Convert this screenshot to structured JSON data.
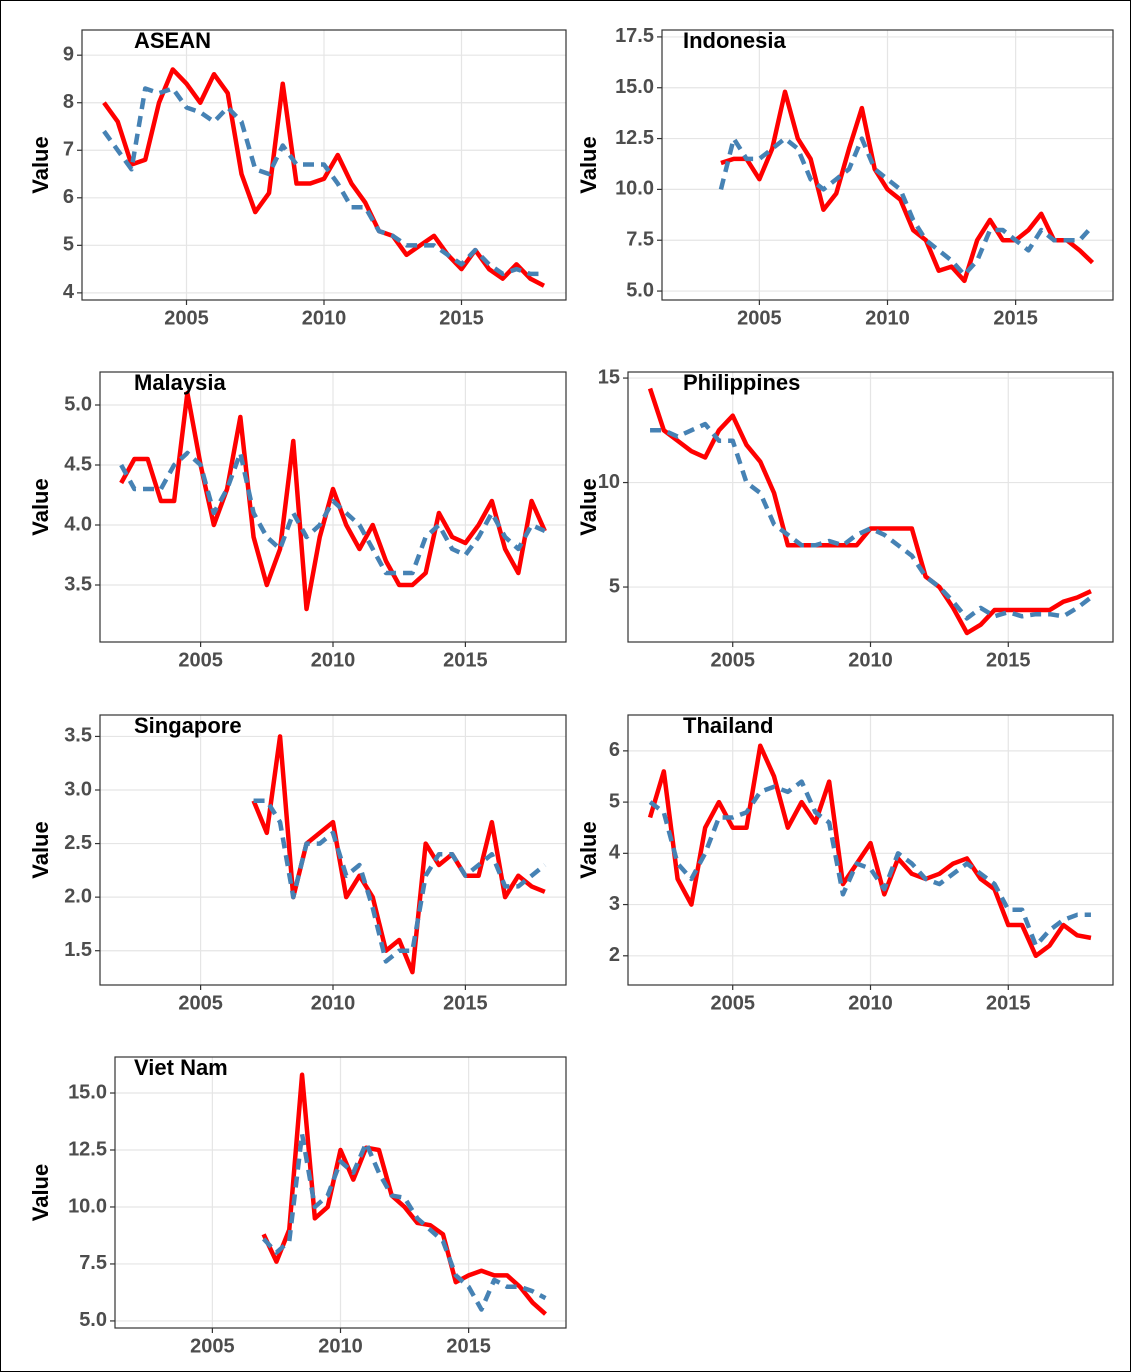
{
  "chart_data": [
    {
      "type": "line",
      "title": "ASEAN",
      "y_label": "Value",
      "x": [
        2002,
        2002.5,
        2003,
        2003.5,
        2004,
        2004.5,
        2005,
        2005.5,
        2006,
        2006.5,
        2007,
        2007.5,
        2008,
        2008.5,
        2009,
        2009.5,
        2010,
        2010.5,
        2011,
        2011.5,
        2012,
        2012.5,
        2013,
        2013.5,
        2014,
        2014.5,
        2015,
        2015.5,
        2016,
        2016.5,
        2017,
        2017.5,
        2018
      ],
      "series": [
        {
          "color": "#ff0000",
          "linetype": "solid",
          "values": [
            8.0,
            7.6,
            6.7,
            6.8,
            8.0,
            8.7,
            8.4,
            8.0,
            8.6,
            8.2,
            6.5,
            5.7,
            6.1,
            8.4,
            6.3,
            6.3,
            6.4,
            6.9,
            6.3,
            5.9,
            5.3,
            5.2,
            4.8,
            5.0,
            5.2,
            4.8,
            4.5,
            4.9,
            4.5,
            4.3,
            4.6,
            4.3,
            4.15
          ]
        },
        {
          "color": "#4682b4",
          "linetype": "dashed",
          "values": [
            7.4,
            7.0,
            6.6,
            8.3,
            8.2,
            8.3,
            7.9,
            7.8,
            7.6,
            7.9,
            7.6,
            6.6,
            6.5,
            7.1,
            6.7,
            6.7,
            6.7,
            6.3,
            5.8,
            5.8,
            5.3,
            5.2,
            5.0,
            5.0,
            5.0,
            4.8,
            4.6,
            4.9,
            4.6,
            4.4,
            4.5,
            4.4,
            4.4
          ]
        }
      ],
      "xlim": [
        2001.2,
        2018.8
      ],
      "xticks": [
        2005,
        2010,
        2015
      ],
      "ylim": [
        3.85,
        9.53
      ],
      "yticks": [
        4,
        5,
        6,
        7,
        8,
        9
      ],
      "grid": true
    },
    {
      "type": "line",
      "title": "Indonesia",
      "y_label": "Value",
      "x": [
        2002,
        2002.5,
        2003,
        2003.5,
        2004,
        2004.5,
        2005,
        2005.5,
        2006,
        2006.5,
        2007,
        2007.5,
        2008,
        2008.5,
        2009,
        2009.5,
        2010,
        2010.5,
        2011,
        2011.5,
        2012,
        2012.5,
        2013,
        2013.5,
        2014,
        2014.5,
        2015,
        2015.5,
        2016,
        2016.5,
        2017,
        2017.5,
        2018
      ],
      "series": [
        {
          "color": "#ff0000",
          "linetype": "solid",
          "values": [
            null,
            null,
            null,
            11.3,
            11.5,
            11.5,
            10.5,
            12.0,
            14.8,
            12.5,
            11.5,
            9.0,
            9.8,
            12.0,
            14.0,
            11.0,
            10.0,
            9.5,
            8.0,
            7.5,
            6.0,
            6.2,
            5.5,
            7.5,
            8.5,
            7.5,
            7.5,
            8.0,
            8.8,
            7.5,
            7.5,
            7.0,
            6.4
          ]
        },
        {
          "color": "#4682b4",
          "linetype": "dashed",
          "values": [
            null,
            null,
            null,
            10.0,
            12.5,
            11.5,
            11.5,
            12.0,
            12.5,
            12.0,
            10.5,
            10.0,
            10.5,
            11.0,
            12.5,
            11.0,
            10.5,
            10.0,
            8.5,
            7.5,
            7.0,
            6.5,
            5.8,
            6.5,
            8.0,
            8.0,
            7.5,
            7.0,
            8.0,
            7.5,
            7.5,
            7.5,
            8.2
          ]
        }
      ],
      "xlim": [
        2001.2,
        2018.8
      ],
      "xticks": [
        2005,
        2010,
        2015
      ],
      "ylim": [
        4.56,
        17.84
      ],
      "yticks": [
        {
          "value": 5,
          "label": "5.0"
        },
        7.5,
        {
          "value": 10,
          "label": "10.0"
        },
        12.5,
        {
          "value": 15,
          "label": "15.0"
        },
        17.5
      ],
      "grid": true
    },
    {
      "type": "line",
      "title": "Malaysia",
      "y_label": "Value",
      "x": [
        2002,
        2002.5,
        2003,
        2003.5,
        2004,
        2004.5,
        2005,
        2005.5,
        2006,
        2006.5,
        2007,
        2007.5,
        2008,
        2008.5,
        2009,
        2009.5,
        2010,
        2010.5,
        2011,
        2011.5,
        2012,
        2012.5,
        2013,
        2013.5,
        2014,
        2014.5,
        2015,
        2015.5,
        2016,
        2016.5,
        2017,
        2017.5,
        2018
      ],
      "series": [
        {
          "color": "#ff0000",
          "linetype": "solid",
          "values": [
            4.35,
            4.55,
            4.55,
            4.2,
            4.2,
            5.1,
            4.5,
            4.0,
            4.3,
            4.9,
            3.9,
            3.5,
            3.8,
            4.7,
            3.3,
            3.9,
            4.3,
            4.0,
            3.8,
            4.0,
            3.7,
            3.5,
            3.5,
            3.6,
            4.1,
            3.9,
            3.85,
            4.0,
            4.2,
            3.8,
            3.6,
            4.2,
            3.95
          ]
        },
        {
          "color": "#4682b4",
          "linetype": "dashed",
          "values": [
            4.5,
            4.3,
            4.3,
            4.3,
            4.5,
            4.6,
            4.5,
            4.1,
            4.3,
            4.6,
            4.1,
            3.9,
            3.8,
            4.1,
            3.9,
            4.0,
            4.2,
            4.1,
            4.0,
            3.8,
            3.6,
            3.6,
            3.6,
            3.9,
            4.0,
            3.8,
            3.75,
            3.9,
            4.1,
            3.9,
            3.8,
            4.0,
            3.95
          ]
        }
      ],
      "xlim": [
        2001.2,
        2018.8
      ],
      "xticks": [
        2005,
        2010,
        2015
      ],
      "ylim": [
        3.025,
        5.275
      ],
      "yticks": [
        3.5,
        {
          "value": 4,
          "label": "4.0"
        },
        4.5,
        {
          "value": 5,
          "label": "5.0"
        }
      ],
      "grid": true
    },
    {
      "type": "line",
      "title": "Philippines",
      "y_label": "Value",
      "x": [
        2002,
        2002.5,
        2003,
        2003.5,
        2004,
        2004.5,
        2005,
        2005.5,
        2006,
        2006.5,
        2007,
        2007.5,
        2008,
        2008.5,
        2009,
        2009.5,
        2010,
        2010.5,
        2011,
        2011.5,
        2012,
        2012.5,
        2013,
        2013.5,
        2014,
        2014.5,
        2015,
        2015.5,
        2016,
        2016.5,
        2017,
        2017.5,
        2018
      ],
      "series": [
        {
          "color": "#ff0000",
          "linetype": "solid",
          "values": [
            14.5,
            12.5,
            12.0,
            11.5,
            11.2,
            12.5,
            13.2,
            11.8,
            11.0,
            9.5,
            7.0,
            7.0,
            7.0,
            7.0,
            7.0,
            7.0,
            7.8,
            7.8,
            7.8,
            7.8,
            5.5,
            5.0,
            4.0,
            2.8,
            3.2,
            3.9,
            3.9,
            3.9,
            3.9,
            3.9,
            4.3,
            4.5,
            4.8
          ]
        },
        {
          "color": "#4682b4",
          "linetype": "dashed",
          "values": [
            12.5,
            12.5,
            12.2,
            12.5,
            12.8,
            12.0,
            12.0,
            10.0,
            9.5,
            8.0,
            7.5,
            7.0,
            7.0,
            7.2,
            7.0,
            7.5,
            7.8,
            7.5,
            7.0,
            6.5,
            5.5,
            5.0,
            4.3,
            3.5,
            4.0,
            3.6,
            3.8,
            3.6,
            3.7,
            3.7,
            3.6,
            4.0,
            4.5
          ]
        }
      ],
      "xlim": [
        2001.2,
        2018.8
      ],
      "xticks": [
        2005,
        2010,
        2015
      ],
      "ylim": [
        2.37,
        15.29
      ],
      "yticks": [
        5,
        10,
        15
      ],
      "grid": true
    },
    {
      "type": "line",
      "title": "Singapore",
      "y_label": "Value",
      "x": [
        2002,
        2002.5,
        2003,
        2003.5,
        2004,
        2004.5,
        2005,
        2005.5,
        2006,
        2006.5,
        2007,
        2007.5,
        2008,
        2008.5,
        2009,
        2009.5,
        2010,
        2010.5,
        2011,
        2011.5,
        2012,
        2012.5,
        2013,
        2013.5,
        2014,
        2014.5,
        2015,
        2015.5,
        2016,
        2016.5,
        2017,
        2017.5,
        2018
      ],
      "series": [
        {
          "color": "#ff0000",
          "linetype": "solid",
          "values": [
            null,
            null,
            null,
            null,
            null,
            null,
            null,
            null,
            null,
            null,
            2.9,
            2.6,
            3.5,
            2.0,
            2.5,
            2.6,
            2.7,
            2.0,
            2.2,
            2.0,
            1.5,
            1.6,
            1.3,
            2.5,
            2.3,
            2.4,
            2.2,
            2.2,
            2.7,
            2.0,
            2.2,
            2.1,
            2.05
          ]
        },
        {
          "color": "#4682b4",
          "linetype": "dashed",
          "values": [
            null,
            null,
            null,
            null,
            null,
            null,
            null,
            null,
            null,
            null,
            2.9,
            2.9,
            2.7,
            2.0,
            2.5,
            2.5,
            2.6,
            2.2,
            2.3,
            1.9,
            1.4,
            1.5,
            1.5,
            2.2,
            2.4,
            2.4,
            2.2,
            2.3,
            2.4,
            2.1,
            2.1,
            2.2,
            2.3
          ]
        }
      ],
      "xlim": [
        2001.2,
        2018.8
      ],
      "xticks": [
        2005,
        2010,
        2015
      ],
      "ylim": [
        1.18,
        3.7
      ],
      "yticks": [
        1.5,
        {
          "value": 2,
          "label": "2.0"
        },
        2.5,
        {
          "value": 3,
          "label": "3.0"
        },
        3.5
      ],
      "grid": true
    },
    {
      "type": "line",
      "title": "Thailand",
      "y_label": "Value",
      "x": [
        2002,
        2002.5,
        2003,
        2003.5,
        2004,
        2004.5,
        2005,
        2005.5,
        2006,
        2006.5,
        2007,
        2007.5,
        2008,
        2008.5,
        2009,
        2009.5,
        2010,
        2010.5,
        2011,
        2011.5,
        2012,
        2012.5,
        2013,
        2013.5,
        2014,
        2014.5,
        2015,
        2015.5,
        2016,
        2016.5,
        2017,
        2017.5,
        2018
      ],
      "series": [
        {
          "color": "#ff0000",
          "linetype": "solid",
          "values": [
            4.7,
            5.6,
            3.5,
            3.0,
            4.5,
            5.0,
            4.5,
            4.5,
            6.1,
            5.5,
            4.5,
            5.0,
            4.6,
            5.4,
            3.4,
            3.8,
            4.2,
            3.2,
            3.9,
            3.6,
            3.5,
            3.6,
            3.8,
            3.9,
            3.5,
            3.3,
            2.6,
            2.6,
            2.0,
            2.2,
            2.6,
            2.4,
            2.35
          ]
        },
        {
          "color": "#4682b4",
          "linetype": "dashed",
          "values": [
            5.0,
            4.8,
            3.8,
            3.5,
            4.0,
            4.7,
            4.7,
            4.8,
            5.2,
            5.3,
            5.2,
            5.4,
            4.8,
            4.6,
            3.2,
            3.8,
            3.7,
            3.3,
            4.0,
            3.8,
            3.5,
            3.4,
            3.6,
            3.8,
            3.6,
            3.4,
            2.9,
            2.9,
            2.2,
            2.5,
            2.7,
            2.8,
            2.8
          ]
        }
      ],
      "xlim": [
        2001.2,
        2018.8
      ],
      "xticks": [
        2005,
        2010,
        2015
      ],
      "ylim": [
        1.43,
        6.7
      ],
      "yticks": [
        2,
        3,
        4,
        5,
        6
      ],
      "grid": true
    },
    {
      "type": "line",
      "title": "Viet Nam",
      "y_label": "Value",
      "x": [
        2002,
        2002.5,
        2003,
        2003.5,
        2004,
        2004.5,
        2005,
        2005.5,
        2006,
        2006.5,
        2007,
        2007.5,
        2008,
        2008.5,
        2009,
        2009.5,
        2010,
        2010.5,
        2011,
        2011.5,
        2012,
        2012.5,
        2013,
        2013.5,
        2014,
        2014.5,
        2015,
        2015.5,
        2016,
        2016.5,
        2017,
        2017.5,
        2018
      ],
      "series": [
        {
          "color": "#ff0000",
          "linetype": "solid",
          "values": [
            null,
            null,
            null,
            null,
            null,
            null,
            null,
            null,
            null,
            null,
            8.8,
            7.6,
            9.0,
            15.8,
            9.5,
            10.0,
            12.5,
            11.2,
            12.6,
            12.5,
            10.5,
            10.0,
            9.3,
            9.2,
            8.8,
            6.7,
            7.0,
            7.2,
            7.0,
            7.0,
            6.5,
            5.8,
            5.3
          ]
        },
        {
          "color": "#4682b4",
          "linetype": "dashed",
          "values": [
            null,
            null,
            null,
            null,
            null,
            null,
            null,
            null,
            null,
            null,
            8.6,
            8.0,
            8.5,
            13.2,
            10.0,
            10.5,
            12.0,
            11.5,
            12.8,
            11.5,
            10.5,
            10.4,
            9.5,
            9.0,
            8.5,
            7.0,
            6.5,
            5.5,
            6.8,
            6.5,
            6.5,
            6.3,
            6.0
          ]
        }
      ],
      "xlim": [
        2001.2,
        2018.8
      ],
      "xticks": [
        2005,
        2010,
        2015
      ],
      "ylim": [
        4.69,
        16.58
      ],
      "yticks": [
        {
          "value": 5,
          "label": "5.0"
        },
        7.5,
        {
          "value": 10,
          "label": "10.0"
        },
        12.5,
        {
          "value": 15,
          "label": "15.0"
        }
      ],
      "grid": true
    }
  ]
}
